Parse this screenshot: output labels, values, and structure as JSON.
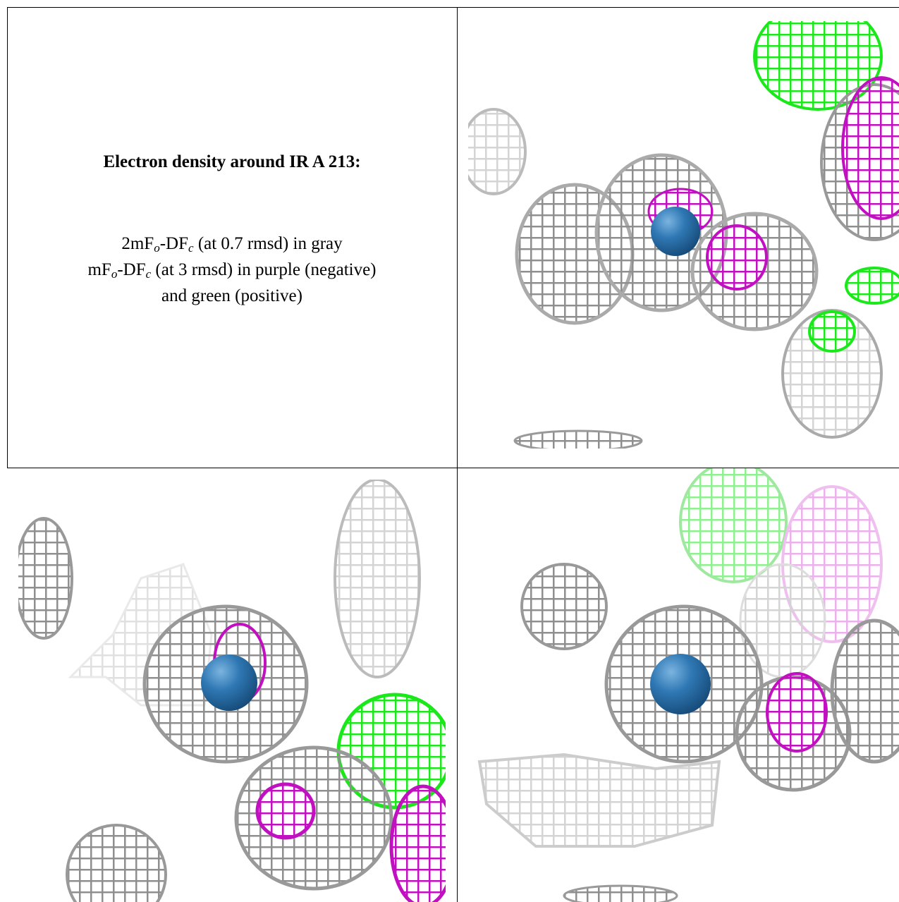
{
  "panel_text": {
    "title": "Electron density around IR A 213:",
    "lines": [
      [
        "2mF",
        "o",
        "-DF",
        "c",
        " (at 0.7 rmsd) in gray"
      ],
      [
        "mF",
        "o",
        "-DF",
        "c",
        " (at 3 rmsd) in purple (negative)"
      ],
      [
        "and green (positive)"
      ]
    ]
  }
}
